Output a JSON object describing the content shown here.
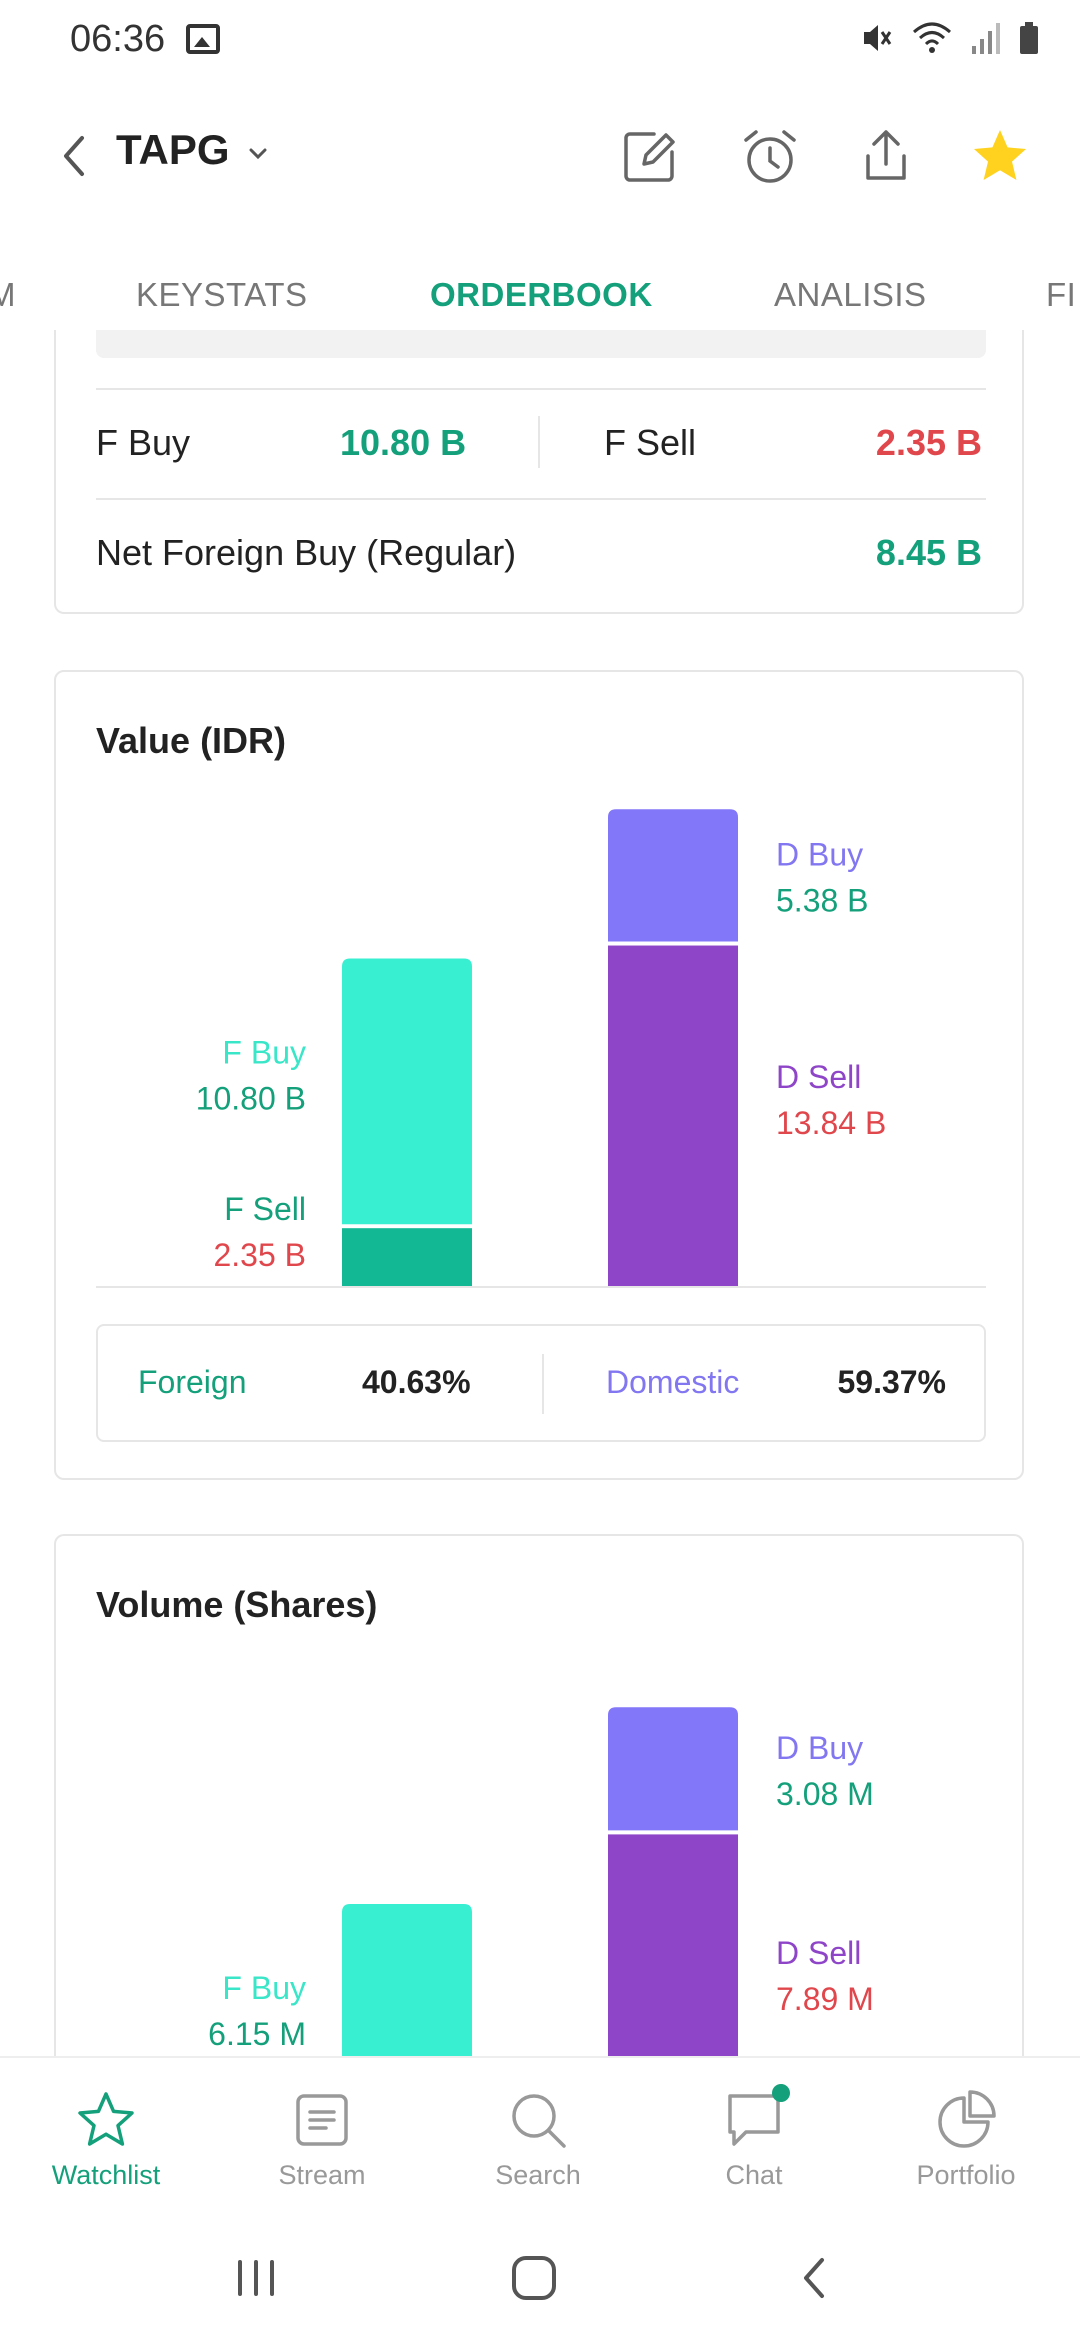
{
  "status": {
    "time": "06:36"
  },
  "header": {
    "ticker": "TAPG"
  },
  "tabs": [
    {
      "label": "M"
    },
    {
      "label": "KEYSTATS"
    },
    {
      "label": "ORDERBOOK"
    },
    {
      "label": "ANALISIS"
    },
    {
      "label": "FI"
    }
  ],
  "foreign_flow": {
    "f_buy_label": "F Buy",
    "f_buy_value": "10.80 B",
    "f_sell_label": "F Sell",
    "f_sell_value": "2.35 B",
    "net_label": "Net Foreign Buy (Regular)",
    "net_value": "8.45 B"
  },
  "value_card": {
    "title": "Value (IDR)",
    "f_buy_label": "F Buy",
    "f_buy_value": "10.80 B",
    "f_sell_label": "F Sell",
    "f_sell_value": "2.35 B",
    "d_buy_label": "D Buy",
    "d_buy_value": "5.38 B",
    "d_sell_label": "D Sell",
    "d_sell_value": "13.84 B",
    "foreign_label": "Foreign",
    "foreign_pct": "40.63%",
    "domestic_label": "Domestic",
    "domestic_pct": "59.37%"
  },
  "volume_card": {
    "title": "Volume (Shares)",
    "f_buy_label": "F Buy",
    "f_buy_value": "6.15 M",
    "d_buy_label": "D Buy",
    "d_buy_value": "3.08 M",
    "d_sell_label": "D Sell",
    "d_sell_value": "7.89 M"
  },
  "chart_data": [
    {
      "type": "bar",
      "title": "Value (IDR)",
      "categories": [
        "Foreign",
        "Domestic"
      ],
      "series": [
        {
          "name": "F Buy",
          "values": [
            10.8,
            null
          ]
        },
        {
          "name": "F Sell",
          "values": [
            2.35,
            null
          ]
        },
        {
          "name": "D Buy",
          "values": [
            null,
            5.38
          ]
        },
        {
          "name": "D Sell",
          "values": [
            null,
            13.84
          ]
        }
      ],
      "stacked": true
    },
    {
      "type": "bar",
      "title": "Volume (Shares)",
      "categories": [
        "Foreign",
        "Domestic"
      ],
      "series": [
        {
          "name": "F Buy",
          "values": [
            6.15,
            null
          ]
        },
        {
          "name": "D Buy",
          "values": [
            null,
            3.08
          ]
        },
        {
          "name": "D Sell",
          "values": [
            null,
            7.89
          ]
        }
      ],
      "stacked": true
    }
  ],
  "colors": {
    "accent": "#14a07a",
    "sell": "#e0474c",
    "f_buy_bar": "#39efd2",
    "f_sell_bar": "#12b894",
    "d_buy_bar": "#8277f8",
    "d_sell_bar": "#8e45c8",
    "f_buy_text": "#39e6c8",
    "domestic_text": "#8277f0",
    "d_sell_text": "#8e45c8",
    "star": "#ffd21f"
  },
  "bottom_nav": [
    {
      "label": "Watchlist",
      "icon": "star-icon"
    },
    {
      "label": "Stream",
      "icon": "stream-icon"
    },
    {
      "label": "Search",
      "icon": "search-icon"
    },
    {
      "label": "Chat",
      "icon": "chat-icon"
    },
    {
      "label": "Portfolio",
      "icon": "pie-chart-icon"
    }
  ]
}
